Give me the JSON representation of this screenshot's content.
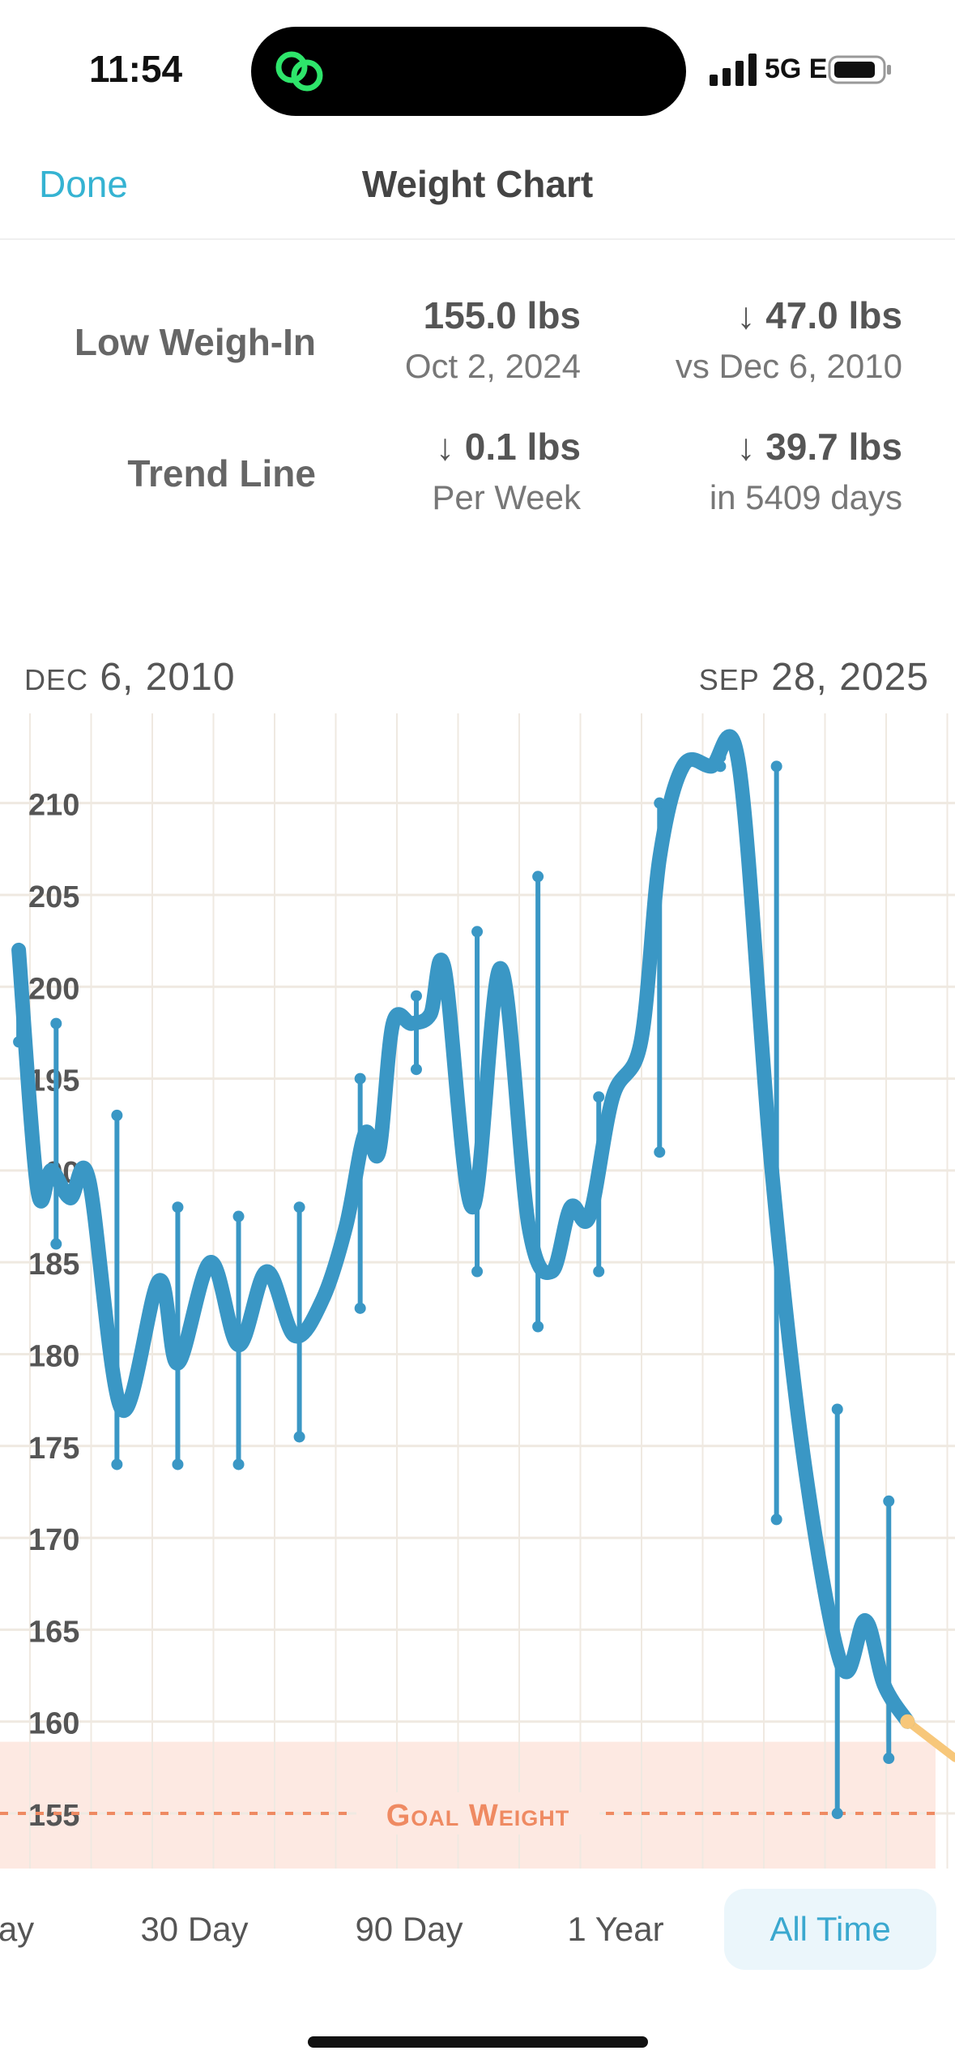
{
  "status_bar": {
    "time": "11:54",
    "network": "5G E"
  },
  "nav": {
    "done_label": "Done",
    "title": "Weight Chart"
  },
  "stats": {
    "low_weigh_in": {
      "label": "Low Weigh-In",
      "value": "155.0 lbs",
      "date": "Oct 2, 2024",
      "delta": "↓ 47.0 lbs",
      "delta_sub": "vs Dec 6, 2010"
    },
    "trend_line": {
      "label": "Trend Line",
      "value": "↓ 0.1 lbs",
      "value_sub": "Per Week",
      "delta": "↓ 39.7 lbs",
      "delta_sub": "in 5409 days"
    }
  },
  "chart_header": {
    "start_month": "DEC",
    "start_rest": "6, 2010",
    "end_month": "SEP",
    "end_rest": "28, 2025"
  },
  "chart_data": {
    "type": "line",
    "y_ticks": [
      "210",
      "205",
      "200",
      "195",
      "190",
      "185",
      "180",
      "175",
      "170",
      "165",
      "160",
      "155"
    ],
    "ylim": [
      152,
      214
    ],
    "xlim": [
      0,
      1
    ],
    "grid": true,
    "goal": {
      "label": "Goal Weight",
      "value": 155
    },
    "trend_series": [
      [
        0.02,
        202
      ],
      [
        0.04,
        189
      ],
      [
        0.055,
        190
      ],
      [
        0.075,
        188.5
      ],
      [
        0.095,
        189.5
      ],
      [
        0.13,
        177
      ],
      [
        0.17,
        184
      ],
      [
        0.19,
        179.5
      ],
      [
        0.225,
        185
      ],
      [
        0.255,
        180.5
      ],
      [
        0.285,
        184.5
      ],
      [
        0.315,
        181
      ],
      [
        0.345,
        183
      ],
      [
        0.37,
        187
      ],
      [
        0.39,
        192
      ],
      [
        0.405,
        191
      ],
      [
        0.42,
        198
      ],
      [
        0.44,
        198
      ],
      [
        0.46,
        198.5
      ],
      [
        0.475,
        201
      ],
      [
        0.505,
        188
      ],
      [
        0.535,
        201
      ],
      [
        0.565,
        187
      ],
      [
        0.59,
        184.5
      ],
      [
        0.61,
        188
      ],
      [
        0.63,
        187.5
      ],
      [
        0.655,
        194
      ],
      [
        0.685,
        197
      ],
      [
        0.705,
        207
      ],
      [
        0.73,
        212
      ],
      [
        0.76,
        212
      ],
      [
        0.79,
        212
      ],
      [
        0.825,
        190
      ],
      [
        0.86,
        174
      ],
      [
        0.9,
        163
      ],
      [
        0.925,
        165.5
      ],
      [
        0.945,
        162
      ],
      [
        0.97,
        160
      ]
    ],
    "weigh_ins": [
      {
        "x": 0.02,
        "high": 202,
        "low": 197
      },
      {
        "x": 0.06,
        "high": 198,
        "low": 186
      },
      {
        "x": 0.125,
        "high": 193,
        "low": 174
      },
      {
        "x": 0.19,
        "high": 188,
        "low": 174
      },
      {
        "x": 0.255,
        "high": 187.5,
        "low": 174
      },
      {
        "x": 0.32,
        "high": 188,
        "low": 175.5
      },
      {
        "x": 0.385,
        "high": 195,
        "low": 182.5
      },
      {
        "x": 0.445,
        "high": 199.5,
        "low": 195.5
      },
      {
        "x": 0.51,
        "high": 203,
        "low": 184.5
      },
      {
        "x": 0.575,
        "high": 206,
        "low": 181.5
      },
      {
        "x": 0.64,
        "high": 194,
        "low": 184.5
      },
      {
        "x": 0.705,
        "high": 210,
        "low": 191
      },
      {
        "x": 0.77,
        "high": 212.5,
        "low": 212
      },
      {
        "x": 0.83,
        "high": 212,
        "low": 171
      },
      {
        "x": 0.895,
        "high": 177,
        "low": 155
      },
      {
        "x": 0.95,
        "high": 172,
        "low": 158
      }
    ],
    "colors": {
      "trend": "#3a97c5",
      "goal": "#ef8a62",
      "goal_band": "#fde9e2",
      "grid": "#efe9e1",
      "projection": "#f7c77a"
    }
  },
  "tabs": [
    {
      "label": "ay",
      "active": false
    },
    {
      "label": "30 Day",
      "active": false
    },
    {
      "label": "90 Day",
      "active": false
    },
    {
      "label": "1 Year",
      "active": false
    },
    {
      "label": "All Time",
      "active": true
    }
  ]
}
